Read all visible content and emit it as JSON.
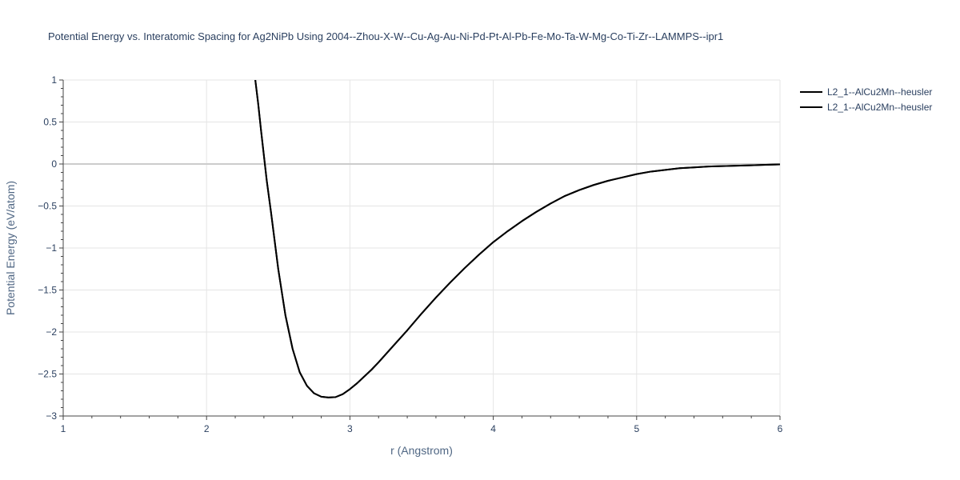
{
  "chart_data": {
    "type": "line",
    "title": "Potential Energy vs. Interatomic Spacing for Ag2NiPb Using 2004--Zhou-X-W--Cu-Ag-Au-Ni-Pd-Pt-Al-Pb-Fe-Mo-Ta-W-Mg-Co-Ti-Zr--LAMMPS--ipr1",
    "xlabel": "r (Angstrom)",
    "ylabel": "Potential Energy (eV/atom)",
    "xlim": [
      1,
      6
    ],
    "ylim": [
      -3,
      1
    ],
    "x_ticks": [
      "1",
      "2",
      "3",
      "4",
      "5",
      "6"
    ],
    "y_ticks": [
      "1",
      "0.5",
      "0",
      "−0.5",
      "−1",
      "−1.5",
      "−2",
      "−2.5",
      "−3"
    ],
    "grid": true,
    "legend_position": "top-right",
    "colors": {
      "line": "#000000",
      "grid": "#e5e5e5",
      "zeroline": "#cccccc",
      "text": "#2a3f5f"
    },
    "series": [
      {
        "name": "L2_1--AlCu2Mn--heusler",
        "x": [
          2.34,
          2.36,
          2.38,
          2.4,
          2.42,
          2.45,
          2.5,
          2.55,
          2.6,
          2.65,
          2.7,
          2.75,
          2.8,
          2.85,
          2.9,
          2.95,
          3.0,
          3.05,
          3.1,
          3.15,
          3.2,
          3.3,
          3.4,
          3.5,
          3.6,
          3.7,
          3.8,
          3.9,
          4.0,
          4.1,
          4.2,
          4.3,
          4.4,
          4.5,
          4.6,
          4.7,
          4.8,
          4.9,
          5.0,
          5.1,
          5.2,
          5.3,
          5.4,
          5.5,
          5.6,
          5.7,
          5.8,
          5.9,
          6.0
        ],
        "y": [
          1.0,
          0.72,
          0.4,
          0.1,
          -0.2,
          -0.58,
          -1.25,
          -1.8,
          -2.2,
          -2.48,
          -2.64,
          -2.73,
          -2.77,
          -2.78,
          -2.775,
          -2.74,
          -2.68,
          -2.61,
          -2.53,
          -2.45,
          -2.36,
          -2.17,
          -1.98,
          -1.78,
          -1.59,
          -1.41,
          -1.24,
          -1.08,
          -0.93,
          -0.8,
          -0.68,
          -0.57,
          -0.47,
          -0.38,
          -0.31,
          -0.25,
          -0.2,
          -0.16,
          -0.12,
          -0.09,
          -0.07,
          -0.05,
          -0.04,
          -0.03,
          -0.025,
          -0.02,
          -0.015,
          -0.01,
          -0.005
        ]
      },
      {
        "name": "L2_1--AlCu2Mn--heusler",
        "x": [
          2.34,
          2.36,
          2.38,
          2.4,
          2.42,
          2.45,
          2.5,
          2.55,
          2.6,
          2.65,
          2.7,
          2.75,
          2.8,
          2.85,
          2.9,
          2.95,
          3.0,
          3.05,
          3.1,
          3.15,
          3.2,
          3.3,
          3.4,
          3.5,
          3.6,
          3.7,
          3.8,
          3.9,
          4.0,
          4.1,
          4.2,
          4.3,
          4.4,
          4.5,
          4.6,
          4.7,
          4.8,
          4.9,
          5.0,
          5.1,
          5.2,
          5.3,
          5.4,
          5.5,
          5.6,
          5.7,
          5.8,
          5.9,
          6.0
        ],
        "y": [
          1.0,
          0.72,
          0.4,
          0.1,
          -0.2,
          -0.58,
          -1.25,
          -1.8,
          -2.2,
          -2.48,
          -2.64,
          -2.73,
          -2.77,
          -2.78,
          -2.775,
          -2.74,
          -2.68,
          -2.61,
          -2.53,
          -2.45,
          -2.36,
          -2.17,
          -1.98,
          -1.78,
          -1.59,
          -1.41,
          -1.24,
          -1.08,
          -0.93,
          -0.8,
          -0.68,
          -0.57,
          -0.47,
          -0.38,
          -0.31,
          -0.25,
          -0.2,
          -0.16,
          -0.12,
          -0.09,
          -0.07,
          -0.05,
          -0.04,
          -0.03,
          -0.025,
          -0.02,
          -0.015,
          -0.01,
          -0.005
        ]
      }
    ]
  }
}
